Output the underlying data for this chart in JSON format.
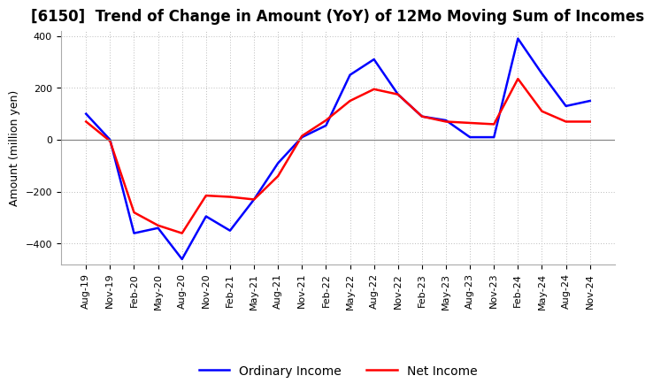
{
  "title": "[6150]  Trend of Change in Amount (YoY) of 12Mo Moving Sum of Incomes",
  "ylabel": "Amount (million yen)",
  "x_labels": [
    "Aug-19",
    "Nov-19",
    "Feb-20",
    "May-20",
    "Aug-20",
    "Nov-20",
    "Feb-21",
    "May-21",
    "Aug-21",
    "Nov-21",
    "Feb-22",
    "May-22",
    "Aug-22",
    "Nov-22",
    "Feb-23",
    "May-23",
    "Aug-23",
    "Nov-23",
    "Feb-24",
    "May-24",
    "Aug-24",
    "Nov-24"
  ],
  "ordinary_income": [
    100,
    0,
    -360,
    -340,
    -460,
    -295,
    -350,
    -230,
    -90,
    10,
    55,
    250,
    310,
    175,
    90,
    75,
    10,
    10,
    390,
    255,
    130,
    150
  ],
  "net_income": [
    70,
    -5,
    -280,
    -330,
    -360,
    -215,
    -220,
    -230,
    -140,
    15,
    75,
    150,
    195,
    175,
    90,
    70,
    65,
    60,
    235,
    110,
    70,
    70
  ],
  "ordinary_color": "#0000ff",
  "net_color": "#ff0000",
  "line_width": 1.8,
  "ylim": [
    -480,
    420
  ],
  "yticks": [
    -400,
    -200,
    0,
    200,
    400
  ],
  "background_color": "#ffffff",
  "grid_color": "#bbbbbb",
  "legend_ordinary": "Ordinary Income",
  "legend_net": "Net Income",
  "title_fontsize": 12,
  "ylabel_fontsize": 9,
  "tick_fontsize": 8,
  "legend_fontsize": 10
}
